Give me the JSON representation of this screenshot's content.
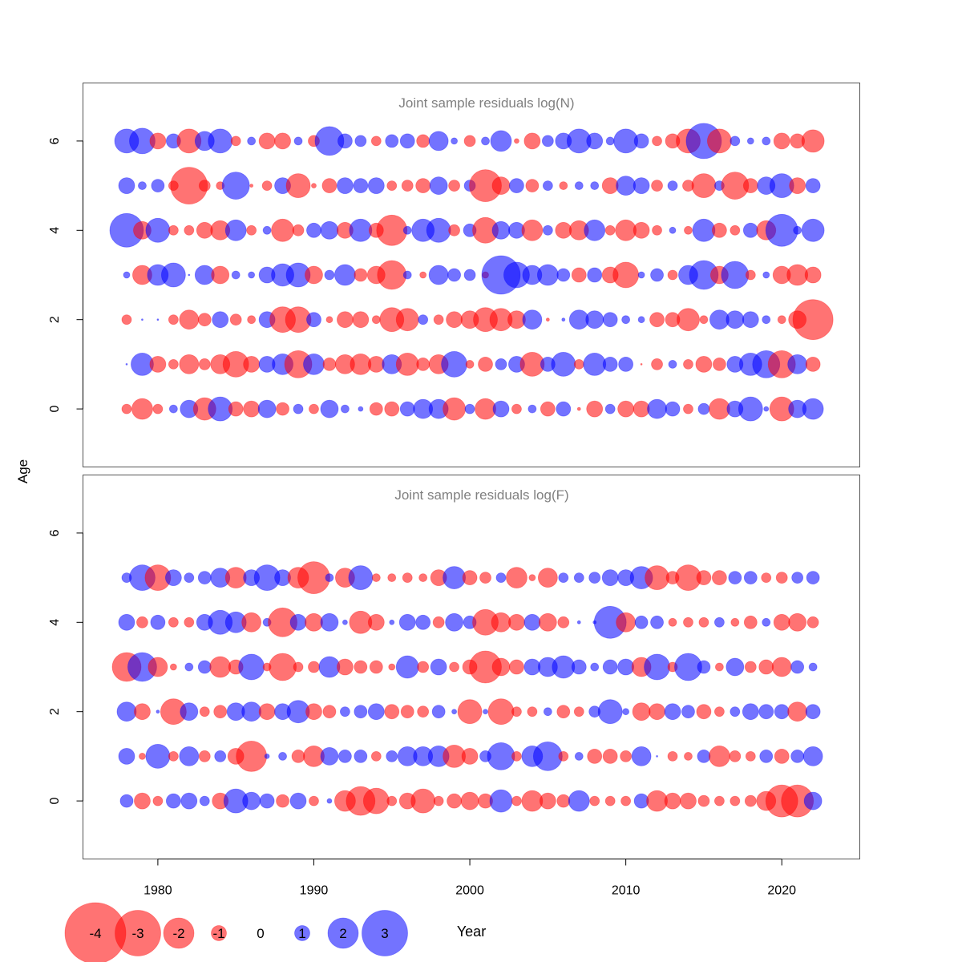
{
  "colors": {
    "positive": "#0000FF",
    "negative": "#FF0000",
    "bubble_alpha": 0.55,
    "title": "#808080",
    "frame": "#555555"
  },
  "shared": {
    "ylabel": "Age",
    "xlabel": "Year",
    "x_range": [
      1975.2,
      2025.0
    ],
    "x_ticks": [
      1980,
      1990,
      2000,
      2010,
      2020
    ],
    "y_range": [
      -1.3,
      7.3
    ],
    "y_ticks": [
      0,
      2,
      4,
      6
    ]
  },
  "legend": {
    "entries": [
      -4,
      -3,
      -2,
      -1,
      0,
      1,
      2,
      3
    ],
    "labels": [
      "-4",
      "-3",
      "-2",
      "-1",
      "0",
      "1",
      "2",
      "3"
    ]
  },
  "chart_data": [
    {
      "type": "scatter",
      "title": "Joint sample residuals log(N)",
      "xlabel": "Year",
      "ylabel": "Age",
      "x_range": [
        1975.2,
        2025.0
      ],
      "y_range": [
        -1.3,
        7.3
      ],
      "years": [
        1978,
        1979,
        1980,
        1981,
        1982,
        1983,
        1984,
        1985,
        1986,
        1987,
        1988,
        1989,
        1990,
        1991,
        1992,
        1993,
        1994,
        1995,
        1996,
        1997,
        1998,
        1999,
        2000,
        2001,
        2002,
        2003,
        2004,
        2005,
        2006,
        2007,
        2008,
        2009,
        2010,
        2011,
        2012,
        2013,
        2014,
        2015,
        2016,
        2017,
        2018,
        2019,
        2020,
        2021,
        2022
      ],
      "ages": [
        0,
        1,
        2,
        3,
        4,
        5,
        6
      ],
      "residuals": {
        "6": [
          1.5,
          1.6,
          -1.0,
          0.9,
          -1.5,
          1.2,
          1.5,
          -0.6,
          0.5,
          -1.0,
          -1.0,
          0.5,
          -0.7,
          1.8,
          0.9,
          0.7,
          -0.6,
          0.8,
          0.9,
          -0.8,
          1.2,
          0.4,
          -0.7,
          0.5,
          1.3,
          -0.3,
          -1.0,
          0.7,
          1.0,
          1.5,
          1.0,
          0.5,
          1.5,
          0.9,
          -0.6,
          -0.9,
          -1.5,
          2.2,
          -1.5,
          0.6,
          0.4,
          0.5,
          -1.0,
          -0.9,
          -1.4
        ],
        "5": [
          1.0,
          0.5,
          0.8,
          -0.6,
          -2.3,
          -0.7,
          -0.5,
          1.7,
          -0.2,
          -0.6,
          1.0,
          -1.5,
          -0.3,
          -0.9,
          1.0,
          0.9,
          1.0,
          -0.6,
          -0.7,
          -0.9,
          1.1,
          -0.7,
          0.7,
          -2.0,
          -1.1,
          0.9,
          -0.8,
          0.6,
          -0.5,
          0.5,
          0.5,
          -1.0,
          1.2,
          1.0,
          -0.7,
          0.6,
          -0.7,
          -1.5,
          0.6,
          -1.7,
          -0.9,
          1.1,
          1.5,
          -1.0,
          0.9
        ],
        "4": [
          2.1,
          -1.1,
          1.5,
          -0.6,
          -0.6,
          -1.0,
          -1.2,
          1.3,
          -0.6,
          0.5,
          -1.4,
          -0.7,
          0.9,
          1.1,
          -1.0,
          1.4,
          -0.9,
          -1.9,
          0.5,
          1.4,
          1.5,
          -0.7,
          0.8,
          -1.6,
          1.1,
          1.0,
          -1.3,
          0.6,
          -1.0,
          -1.2,
          1.3,
          -0.6,
          -1.3,
          -1.0,
          -0.6,
          0.4,
          -0.5,
          1.4,
          -0.9,
          -0.6,
          0.9,
          -1.2,
          2.0,
          0.5,
          1.4
        ],
        "3": [
          0.4,
          -1.2,
          1.3,
          1.5,
          0.1,
          1.2,
          -1.1,
          0.5,
          0.4,
          1.0,
          1.4,
          1.5,
          -1.1,
          0.6,
          1.3,
          -0.8,
          -1.1,
          -1.8,
          0.5,
          -0.4,
          1.2,
          0.8,
          0.7,
          -0.4,
          2.4,
          1.6,
          1.2,
          1.3,
          0.8,
          -0.9,
          0.9,
          -1.0,
          -1.6,
          0.4,
          0.8,
          -0.6,
          1.2,
          1.8,
          -1.1,
          1.7,
          -0.6,
          0.4,
          -1.1,
          -1.3,
          -1.0
        ],
        "2": [
          -0.6,
          0.1,
          0.1,
          -0.6,
          -1.2,
          -0.8,
          1.0,
          -0.7,
          -0.5,
          1.0,
          -1.6,
          -1.6,
          0.9,
          -0.4,
          -1.0,
          -1.0,
          -0.5,
          -1.5,
          -1.4,
          0.6,
          -0.6,
          -1.0,
          -1.1,
          -1.5,
          -1.4,
          -1.1,
          1.2,
          -0.2,
          0.2,
          1.2,
          1.1,
          0.9,
          0.5,
          0.4,
          -0.9,
          -0.9,
          -1.4,
          -0.5,
          1.2,
          1.1,
          1.0,
          0.5,
          -0.5,
          -1.1,
          -2.5
        ],
        "1": [
          0.1,
          1.4,
          -1.0,
          -0.6,
          -1.2,
          -0.7,
          -1.2,
          -1.6,
          -1.0,
          1.0,
          1.3,
          -1.7,
          1.3,
          -0.8,
          -1.2,
          -1.3,
          -1.0,
          1.2,
          -1.4,
          -0.8,
          -1.2,
          1.6,
          -0.5,
          -0.9,
          0.7,
          1.0,
          -1.5,
          0.9,
          1.5,
          -0.6,
          1.4,
          0.9,
          0.9,
          -0.1,
          -0.7,
          0.5,
          -0.6,
          -1.0,
          -0.8,
          1.0,
          1.4,
          1.7,
          -1.7,
          1.2,
          -0.9
        ],
        "0": [
          -0.6,
          -1.3,
          -0.6,
          0.5,
          1.1,
          -1.4,
          1.5,
          -0.9,
          -1.0,
          1.1,
          -0.8,
          0.6,
          -0.6,
          1.1,
          0.5,
          0.3,
          -0.8,
          -0.9,
          0.9,
          1.2,
          1.2,
          -1.4,
          0.6,
          -1.3,
          1.0,
          -0.6,
          0.5,
          -0.9,
          0.9,
          -0.2,
          -1.0,
          0.6,
          -1.0,
          -1.0,
          1.2,
          0.9,
          -0.6,
          0.7,
          -1.3,
          1.0,
          1.5,
          0.3,
          -1.5,
          1.1,
          1.3
        ]
      }
    },
    {
      "type": "scatter",
      "title": "Joint sample residuals log(F)",
      "xlabel": "Year",
      "ylabel": "Age",
      "x_range": [
        1975.2,
        2025.0
      ],
      "y_range": [
        -1.3,
        7.3
      ],
      "years": [
        1978,
        1979,
        1980,
        1981,
        1982,
        1983,
        1984,
        1985,
        1986,
        1987,
        1988,
        1989,
        1990,
        1991,
        1992,
        1993,
        1994,
        1995,
        1996,
        1997,
        1998,
        1999,
        2000,
        2001,
        2002,
        2003,
        2004,
        2005,
        2006,
        2007,
        2008,
        2009,
        2010,
        2011,
        2012,
        2013,
        2014,
        2015,
        2016,
        2017,
        2018,
        2019,
        2020,
        2021,
        2022
      ],
      "ages": [
        0,
        1,
        2,
        3,
        4,
        5
      ],
      "residuals": {
        "5": [
          0.6,
          1.6,
          -1.6,
          1.0,
          0.6,
          0.8,
          1.2,
          -1.3,
          1.0,
          1.6,
          1.0,
          -1.3,
          -2.0,
          0.5,
          -1.2,
          1.5,
          -0.5,
          -0.5,
          -0.6,
          -0.5,
          -1.0,
          1.4,
          -0.9,
          -0.7,
          0.6,
          -1.3,
          -0.4,
          -1.2,
          0.6,
          0.6,
          0.7,
          1.0,
          1.0,
          1.4,
          -1.5,
          -0.8,
          -1.6,
          -0.9,
          -0.9,
          0.8,
          0.8,
          -0.6,
          -0.7,
          0.7,
          0.8
        ],
        "4": [
          1.0,
          -0.7,
          0.9,
          -0.6,
          -0.6,
          1.0,
          1.5,
          1.3,
          -1.2,
          0.5,
          -1.8,
          1.0,
          -1.1,
          1.1,
          0.3,
          -1.4,
          -1.0,
          0.3,
          1.0,
          0.9,
          -0.7,
          1.1,
          0.8,
          -1.6,
          -1.2,
          -1.0,
          1.0,
          -1.1,
          -0.7,
          0.2,
          0.2,
          2.0,
          -1.2,
          0.8,
          0.8,
          -0.5,
          -0.6,
          -0.6,
          0.6,
          -0.5,
          -0.8,
          0.5,
          -1.0,
          -1.1,
          -0.7
        ],
        "3": [
          -1.8,
          1.8,
          -1.2,
          -0.4,
          0.5,
          0.8,
          -1.3,
          -0.9,
          1.6,
          -0.5,
          -1.7,
          -0.6,
          -0.7,
          1.3,
          -1.0,
          -0.8,
          -0.8,
          -0.4,
          1.4,
          -0.7,
          1.0,
          -0.6,
          -0.9,
          -2.0,
          -1.1,
          -0.9,
          1.0,
          1.2,
          1.4,
          0.9,
          0.5,
          0.9,
          1.0,
          -1.2,
          1.6,
          -0.6,
          1.7,
          0.8,
          -0.5,
          1.1,
          -0.7,
          -0.9,
          -1.2,
          0.8,
          0.5
        ],
        "2": [
          1.2,
          -1.0,
          0.2,
          -1.6,
          1.1,
          -0.6,
          -0.8,
          1.1,
          1.2,
          -1.0,
          1.0,
          1.4,
          -1.0,
          -0.8,
          0.6,
          0.8,
          1.0,
          -0.9,
          -0.8,
          -0.7,
          0.8,
          0.3,
          -1.5,
          0.3,
          -1.6,
          -0.6,
          -0.6,
          0.5,
          -0.8,
          -0.6,
          0.7,
          1.5,
          0.4,
          -1.1,
          -1.0,
          1.0,
          0.8,
          -0.9,
          -0.6,
          0.6,
          1.0,
          0.9,
          0.9,
          -1.2,
          0.9
        ],
        "1": [
          1.0,
          -0.4,
          1.5,
          -0.6,
          1.2,
          -0.7,
          0.7,
          -1.0,
          -1.9,
          0.3,
          0.5,
          -0.8,
          -1.3,
          1.1,
          0.8,
          0.8,
          -0.6,
          0.7,
          1.2,
          1.2,
          1.3,
          -1.4,
          -1.0,
          0.7,
          1.7,
          -0.6,
          1.3,
          1.8,
          -0.6,
          0.5,
          -0.9,
          -0.9,
          -0.7,
          1.2,
          0.1,
          -0.6,
          -0.5,
          0.8,
          -1.3,
          -0.7,
          -0.6,
          0.8,
          -0.9,
          0.8,
          1.2
        ],
        "0": [
          0.8,
          -1.0,
          -0.6,
          0.9,
          1.0,
          0.6,
          -1.0,
          1.5,
          1.1,
          0.9,
          -0.8,
          1.0,
          -0.6,
          0.3,
          -1.3,
          -1.8,
          -1.6,
          -0.6,
          -1.0,
          -1.5,
          -0.6,
          -0.9,
          -1.1,
          -0.9,
          1.4,
          -0.6,
          -1.3,
          -1.0,
          -0.8,
          1.3,
          -0.6,
          -0.6,
          -0.6,
          0.9,
          -1.3,
          -1.0,
          -1.0,
          -0.7,
          -0.6,
          -0.6,
          -0.7,
          -1.2,
          -2.0,
          -2.0,
          1.1
        ]
      }
    }
  ]
}
